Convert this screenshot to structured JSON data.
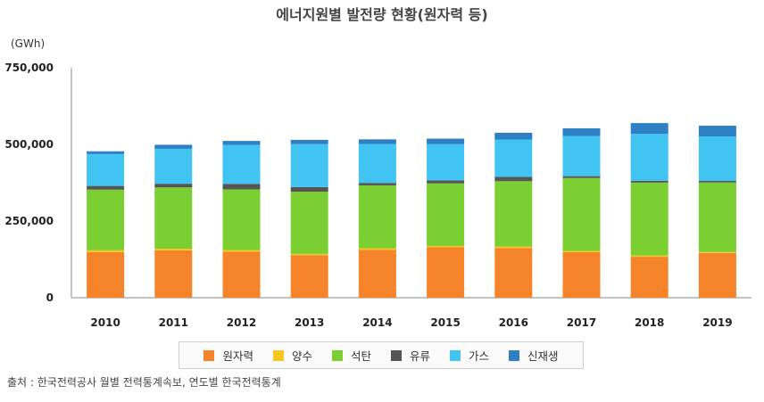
{
  "chart_data": {
    "type": "bar",
    "stacked": true,
    "title": "에너지원별 발전량 현황(원자력 등)",
    "ylabel": "(GWh)",
    "xlabel": "",
    "ylim": [
      0,
      750000
    ],
    "yticks": [
      0,
      250000,
      500000,
      750000
    ],
    "ytick_labels": [
      "0",
      "250,000",
      "500,000",
      "750,000"
    ],
    "grid": false,
    "legend_position": "bottom",
    "categories": [
      "2010",
      "2011",
      "2012",
      "2013",
      "2014",
      "2015",
      "2016",
      "2017",
      "2018",
      "2019"
    ],
    "series": [
      {
        "name": "원자력",
        "color": "#f5832a",
        "values": [
          148596,
          154723,
          150327,
          138784,
          156407,
          164762,
          161995,
          148427,
          133505,
          145910
        ]
      },
      {
        "name": "양수",
        "color": "#f7c51c",
        "values": [
          6000,
          5000,
          5000,
          4000,
          5000,
          4000,
          5000,
          4000,
          4000,
          3000
        ]
      },
      {
        "name": "석탄",
        "color": "#7ccf33",
        "values": [
          197917,
          200000,
          198000,
          203000,
          205000,
          204000,
          213000,
          238000,
          238000,
          227000
        ]
      },
      {
        "name": "유류",
        "color": "#555555",
        "values": [
          12000,
          12000,
          18000,
          15000,
          8000,
          10000,
          14000,
          6000,
          6000,
          5000
        ]
      },
      {
        "name": "가스",
        "color": "#41c4f2",
        "values": [
          104000,
          114000,
          127000,
          140000,
          127000,
          118000,
          122000,
          131000,
          153000,
          145000
        ]
      },
      {
        "name": "신재생",
        "color": "#2e7fc4",
        "values": [
          9000,
          13000,
          13000,
          14000,
          15000,
          18000,
          22000,
          25000,
          35000,
          35000
        ]
      }
    ]
  },
  "source": {
    "text": "출처 : 한국전력공사 월별 전력통계속보, 연도별 한국전력통계"
  }
}
